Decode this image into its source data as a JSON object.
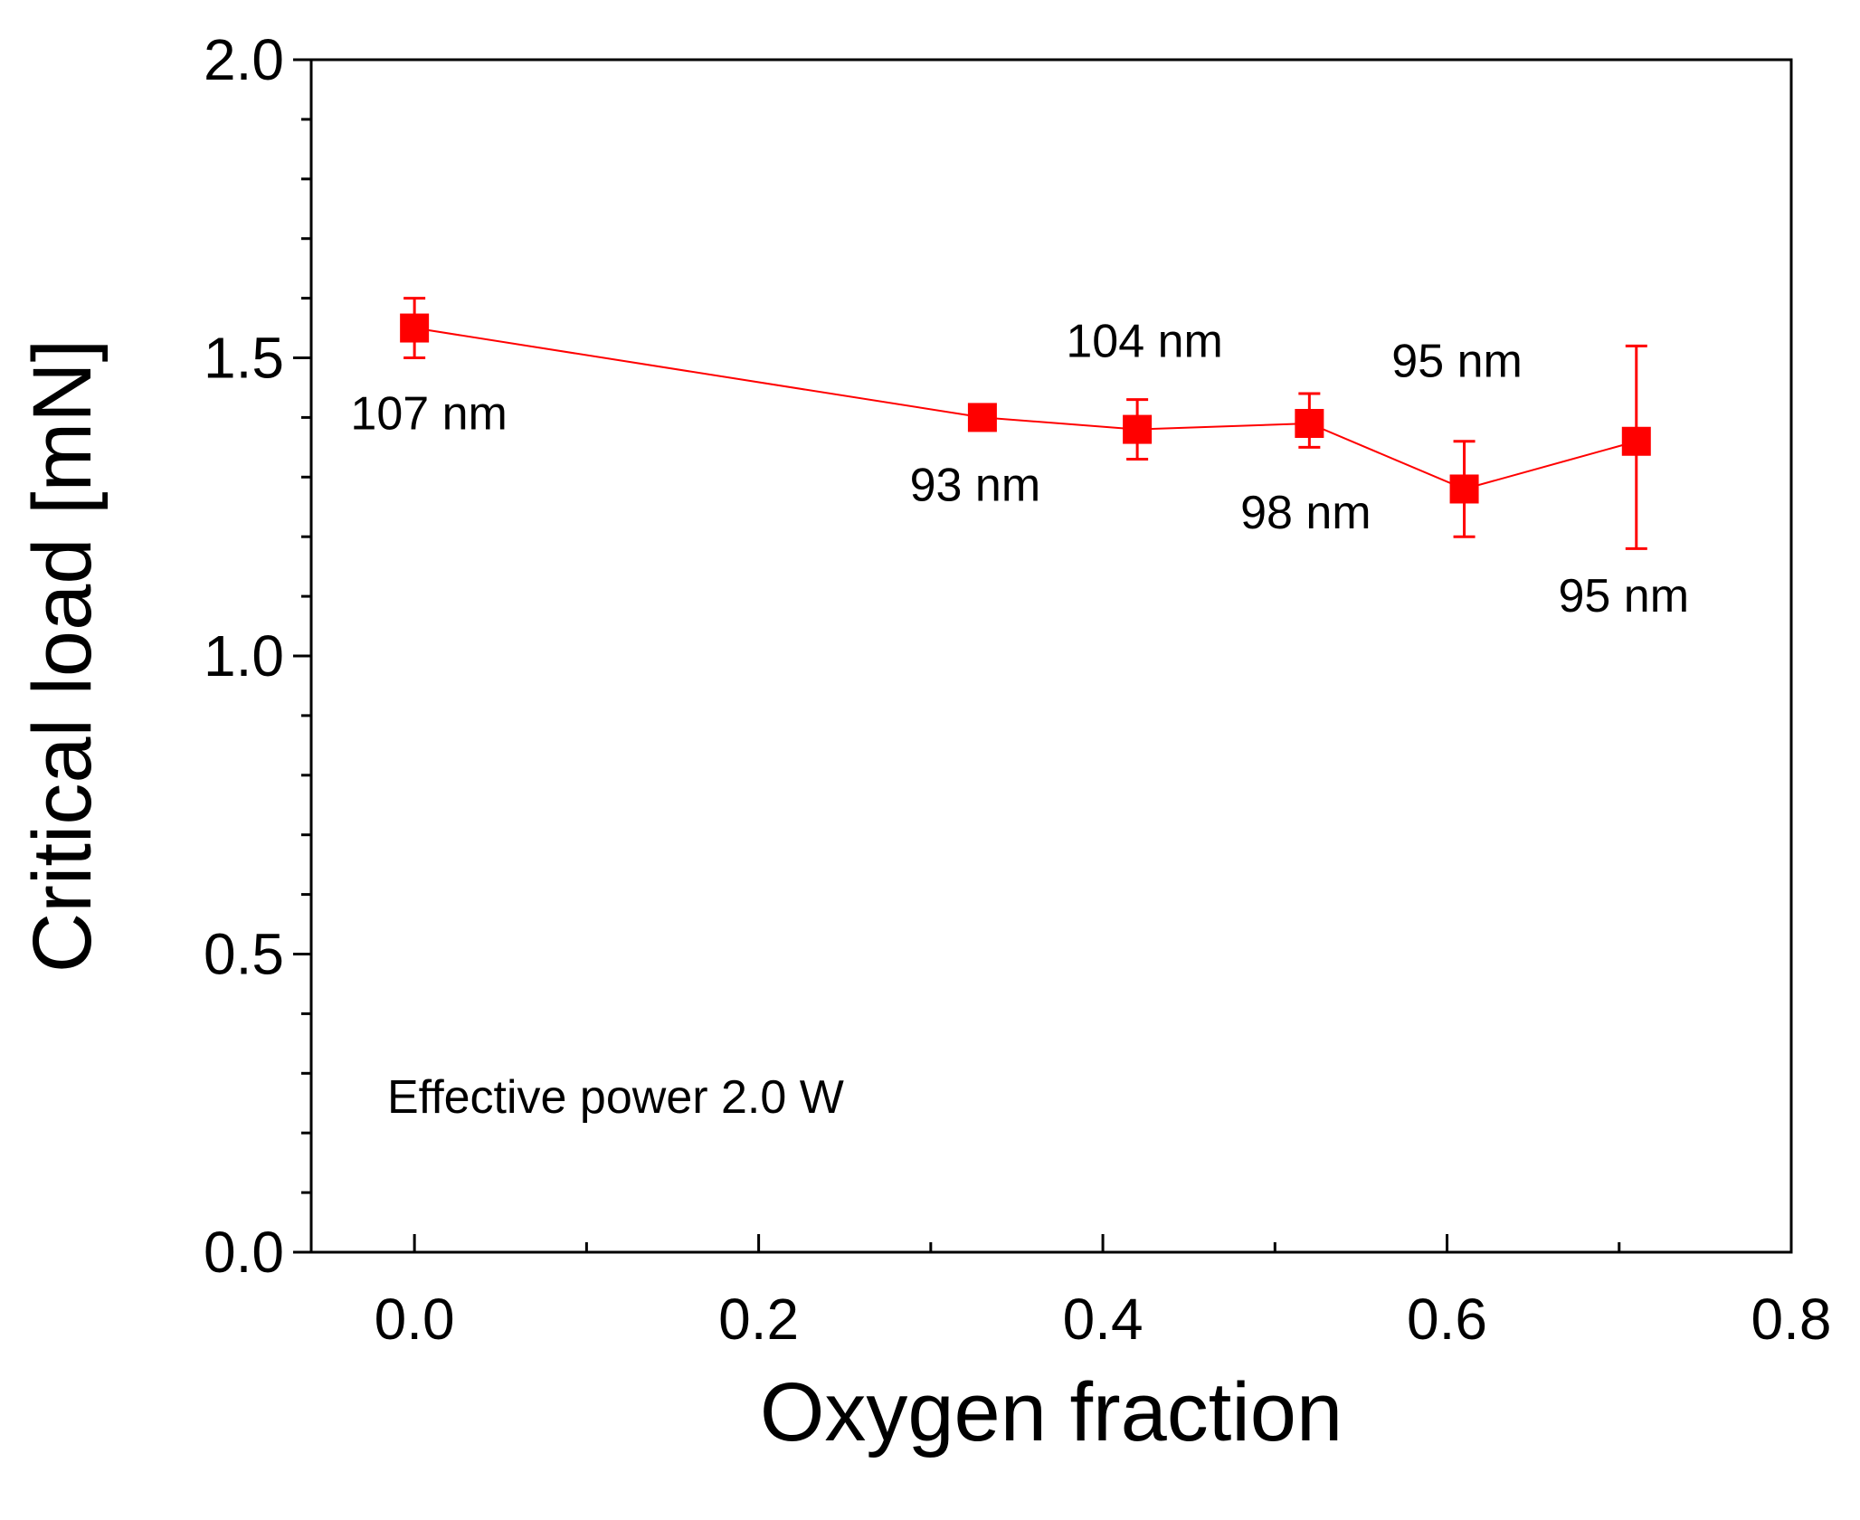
{
  "chart_data": {
    "type": "line",
    "title": "",
    "xlabel": "Oxygen fraction",
    "ylabel": "Critical load [mN]",
    "xlim": [
      -0.06,
      0.8
    ],
    "ylim": [
      0.0,
      2.0
    ],
    "x_ticks": [
      0.0,
      0.2,
      0.4,
      0.6,
      0.8
    ],
    "x_tick_labels": [
      "0.0",
      "0.2",
      "0.4",
      "0.6",
      "0.8"
    ],
    "x_minor_ticks": [
      0.1,
      0.3,
      0.5,
      0.7
    ],
    "y_ticks": [
      0.0,
      0.5,
      1.0,
      1.5,
      2.0
    ],
    "y_tick_labels": [
      "0.0",
      "0.5",
      "1.0",
      "1.5",
      "2.0"
    ],
    "y_minor_ticks": [
      0.1,
      0.2,
      0.3,
      0.4,
      0.6,
      0.7,
      0.8,
      0.9,
      1.1,
      1.2,
      1.3,
      1.4,
      1.6,
      1.7,
      1.8,
      1.9
    ],
    "grid": false,
    "series": [
      {
        "name": "Effective power 2.0 W",
        "color": "#ff0000",
        "marker": "square",
        "x": [
          0.0,
          0.33,
          0.42,
          0.52,
          0.61,
          0.71
        ],
        "y": [
          1.55,
          1.4,
          1.38,
          1.39,
          1.28,
          1.36
        ],
        "err_low": [
          1.5,
          1.4,
          1.33,
          1.35,
          1.2,
          1.18
        ],
        "err_high": [
          1.6,
          1.4,
          1.43,
          1.44,
          1.36,
          1.52
        ]
      }
    ],
    "point_labels": [
      {
        "text": "107 nm",
        "x": 0.0,
        "y": 1.55
      },
      {
        "text": "93 nm",
        "x": 0.33,
        "y": 1.4
      },
      {
        "text": "104 nm",
        "x": 0.42,
        "y": 1.38
      },
      {
        "text": "98 nm",
        "x": 0.52,
        "y": 1.39
      },
      {
        "text": "95 nm",
        "x": 0.61,
        "y": 1.28
      },
      {
        "text": "95 nm",
        "x": 0.71,
        "y": 1.36
      }
    ],
    "annotations": [
      {
        "text": "Effective power 2.0 W"
      }
    ]
  }
}
